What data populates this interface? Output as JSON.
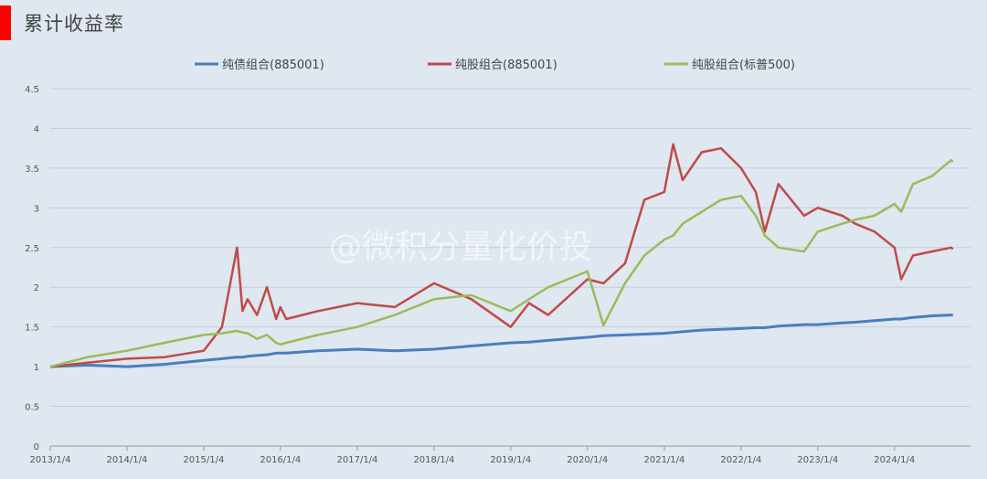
{
  "title": "累计收益率",
  "watermark": "@微积分量化价投",
  "chart_data": {
    "type": "line",
    "title": "累计收益率",
    "xlabel": "",
    "ylabel": "",
    "ylim": [
      0,
      4.5
    ],
    "yticks": [
      "0",
      "0.5",
      "1",
      "1.5",
      "2",
      "2.5",
      "3",
      "3.5",
      "4",
      "4.5"
    ],
    "xticks": [
      "2013/1/4",
      "2014/1/4",
      "2015/1/4",
      "2016/1/4",
      "2017/1/4",
      "2018/1/4",
      "2019/1/4",
      "2020/1/4",
      "2021/1/4",
      "2022/1/4",
      "2023/1/4",
      "2024/1/4"
    ],
    "x": [
      "2013/1/4",
      "2013/7/1",
      "2014/1/4",
      "2014/7/1",
      "2015/1/4",
      "2015/4/1",
      "2015/6/12",
      "2015/7/8",
      "2015/8/1",
      "2015/9/15",
      "2015/11/1",
      "2015/12/15",
      "2016/1/4",
      "2016/2/1",
      "2016/7/1",
      "2017/1/4",
      "2017/7/1",
      "2018/1/4",
      "2018/7/1",
      "2019/1/4",
      "2019/4/1",
      "2019/7/1",
      "2020/1/4",
      "2020/3/20",
      "2020/7/1",
      "2020/10/1",
      "2021/1/4",
      "2021/2/15",
      "2021/4/1",
      "2021/7/1",
      "2021/10/1",
      "2022/1/4",
      "2022/3/15",
      "2022/4/27",
      "2022/7/1",
      "2022/10/31",
      "2023/1/4",
      "2023/5/1",
      "2023/7/1",
      "2023/10/1",
      "2024/1/4",
      "2024/2/5",
      "2024/4/1",
      "2024/7/1",
      "2024/9/30",
      "2024/10/8"
    ],
    "series": [
      {
        "name": "纯债组合(885001)",
        "color": "#4a7ebb",
        "values": [
          1.0,
          1.02,
          1.0,
          1.03,
          1.08,
          1.1,
          1.12,
          1.12,
          1.13,
          1.14,
          1.15,
          1.17,
          1.17,
          1.17,
          1.2,
          1.22,
          1.2,
          1.22,
          1.26,
          1.3,
          1.31,
          1.33,
          1.37,
          1.39,
          1.4,
          1.41,
          1.42,
          1.43,
          1.44,
          1.46,
          1.47,
          1.48,
          1.49,
          1.49,
          1.51,
          1.53,
          1.53,
          1.55,
          1.56,
          1.58,
          1.6,
          1.6,
          1.62,
          1.64,
          1.65,
          1.65
        ]
      },
      {
        "name": "纯股组合(885001)",
        "color": "#be4b48",
        "values": [
          1.0,
          1.05,
          1.1,
          1.12,
          1.2,
          1.5,
          2.5,
          1.7,
          1.85,
          1.65,
          2.0,
          1.6,
          1.75,
          1.6,
          1.7,
          1.8,
          1.75,
          2.05,
          1.85,
          1.5,
          1.8,
          1.65,
          2.1,
          2.05,
          2.3,
          3.1,
          3.2,
          3.8,
          3.35,
          3.7,
          3.75,
          3.5,
          3.2,
          2.7,
          3.3,
          2.9,
          3.0,
          2.9,
          2.8,
          2.7,
          2.5,
          2.1,
          2.4,
          2.45,
          2.5,
          2.48
        ]
      },
      {
        "name": "纯股组合(标普500)",
        "color": "#9bbb59",
        "values": [
          1.0,
          1.12,
          1.2,
          1.3,
          1.4,
          1.42,
          1.45,
          1.43,
          1.42,
          1.35,
          1.4,
          1.3,
          1.28,
          1.3,
          1.4,
          1.5,
          1.65,
          1.85,
          1.9,
          1.7,
          1.85,
          2.0,
          2.2,
          1.52,
          2.05,
          2.4,
          2.6,
          2.65,
          2.8,
          2.95,
          3.1,
          3.15,
          2.9,
          2.65,
          2.5,
          2.45,
          2.7,
          2.8,
          2.85,
          2.9,
          3.05,
          2.95,
          3.3,
          3.4,
          3.6,
          3.58
        ]
      }
    ],
    "legend": "top",
    "grid": "horizontal"
  }
}
